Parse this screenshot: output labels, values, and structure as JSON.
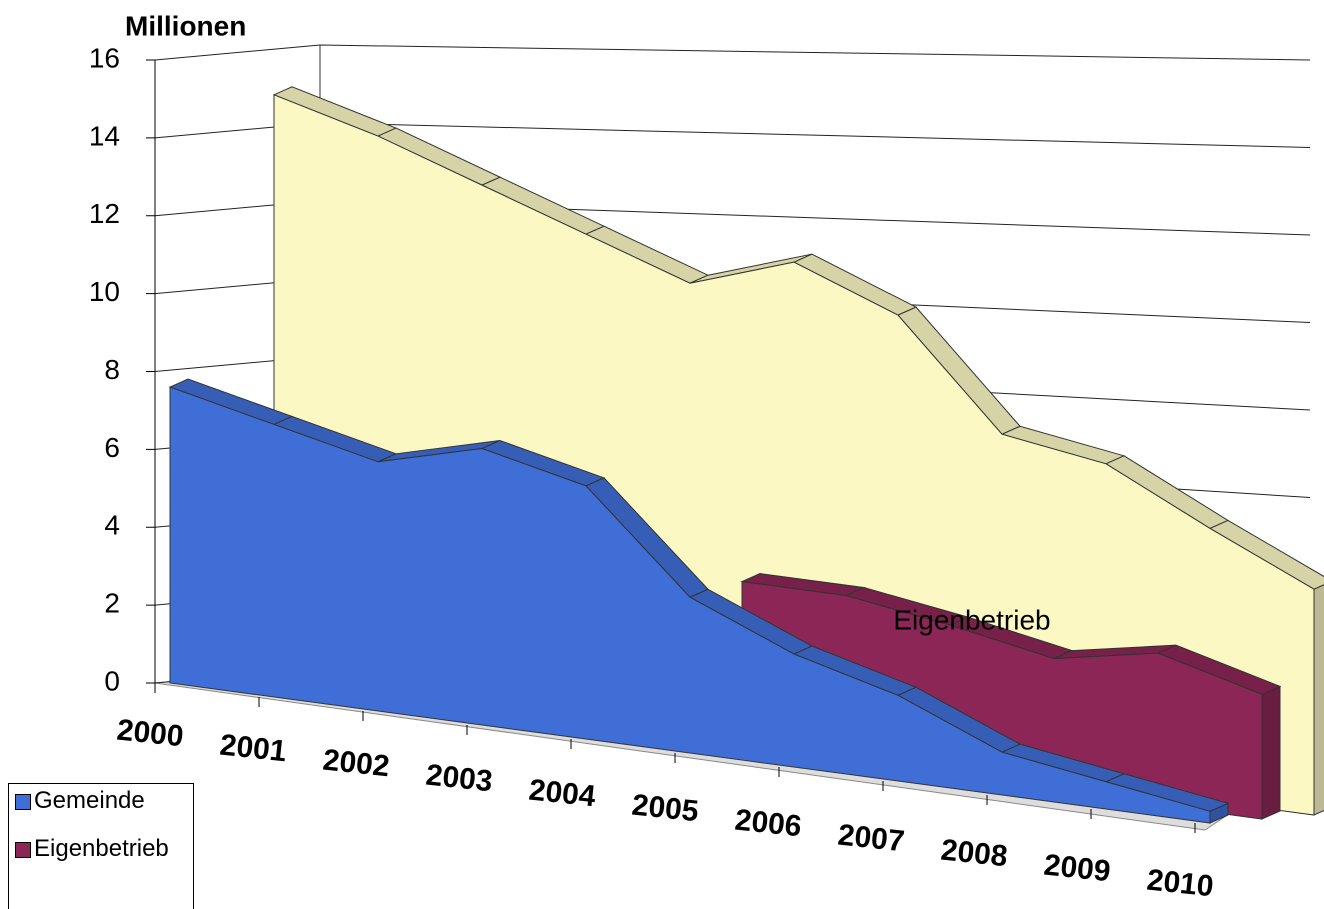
{
  "chart_data": {
    "type": "area3d",
    "y_axis_label": "Millionen",
    "categories": [
      "2000",
      "2001",
      "2002",
      "2003",
      "2004",
      "2005",
      "2006",
      "2007",
      "2008",
      "2009",
      "2010"
    ],
    "series": [
      {
        "name": "Gemeinde",
        "color": "#3f6fd6",
        "values": [
          7.6,
          7.0,
          6.4,
          7.1,
          6.5,
          4.0,
          2.9,
          2.2,
          1.1,
          0.7,
          0.3
        ]
      },
      {
        "name": "Eigenbetrieb",
        "color": "#8c2656",
        "values": [
          null,
          null,
          null,
          null,
          null,
          4.3,
          4.3,
          3.9,
          3.4,
          3.9,
          3.2
        ]
      },
      {
        "color": "#fcf8c4",
        "values": [
          14.9,
          14.2,
          13.3,
          12.4,
          11.5,
          12.4,
          11.4,
          8.7,
          8.3,
          7.0,
          5.8
        ]
      }
    ],
    "annotation": "Eigenbetrieb",
    "ylim": [
      0,
      16
    ],
    "yticks": [
      0,
      2,
      4,
      6,
      8,
      10,
      12,
      14,
      16
    ],
    "grid": true
  }
}
